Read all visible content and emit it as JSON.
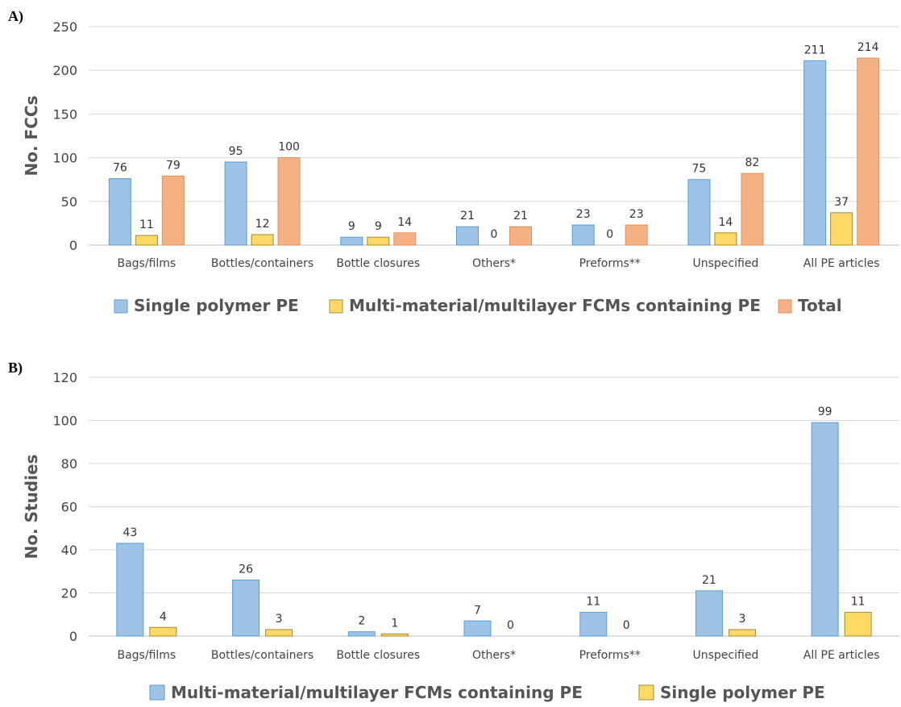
{
  "colors": {
    "blue": "#9dc3e6",
    "blue_edge": "#5b9bd5",
    "yellow": "#ffd966",
    "yellow_edge": "#a08a30",
    "orange": "#f4b183",
    "orange_edge": "#e09060"
  },
  "chart_data": [
    {
      "panel": "A)",
      "type": "bar",
      "ylabel": "No. FCCs",
      "ylim": [
        0,
        250
      ],
      "yticks": [
        0,
        50,
        100,
        150,
        200,
        250
      ],
      "grid": true,
      "legend_position": "bottom",
      "categories": [
        "Bags/films",
        "Bottles/containers",
        "Bottle closures",
        "Others*",
        "Preforms**",
        "Unspecified",
        "All PE articles"
      ],
      "series": [
        {
          "name": "Single polymer PE",
          "color": "blue",
          "values": [
            76,
            95,
            9,
            21,
            23,
            75,
            211
          ]
        },
        {
          "name": "Multi-material/multilayer FCMs containing PE",
          "color": "yellow",
          "values": [
            11,
            12,
            9,
            0,
            0,
            14,
            37
          ]
        },
        {
          "name": "Total",
          "color": "orange",
          "values": [
            79,
            100,
            14,
            21,
            23,
            82,
            214
          ]
        }
      ]
    },
    {
      "panel": "B)",
      "type": "bar",
      "ylabel": "No. Studies",
      "ylim": [
        0,
        120
      ],
      "yticks": [
        0,
        20,
        40,
        60,
        80,
        100,
        120
      ],
      "grid": true,
      "legend_position": "bottom",
      "categories": [
        "Bags/films",
        "Bottles/containers",
        "Bottle closures",
        "Others*",
        "Preforms**",
        "Unspecified",
        "All PE articles"
      ],
      "series": [
        {
          "name": "Multi-material/multilayer FCMs containing PE",
          "color": "blue",
          "values": [
            43,
            26,
            2,
            7,
            11,
            21,
            99
          ]
        },
        {
          "name": "Single polymer PE",
          "color": "yellow",
          "values": [
            4,
            3,
            1,
            0,
            0,
            3,
            11
          ]
        }
      ]
    }
  ]
}
